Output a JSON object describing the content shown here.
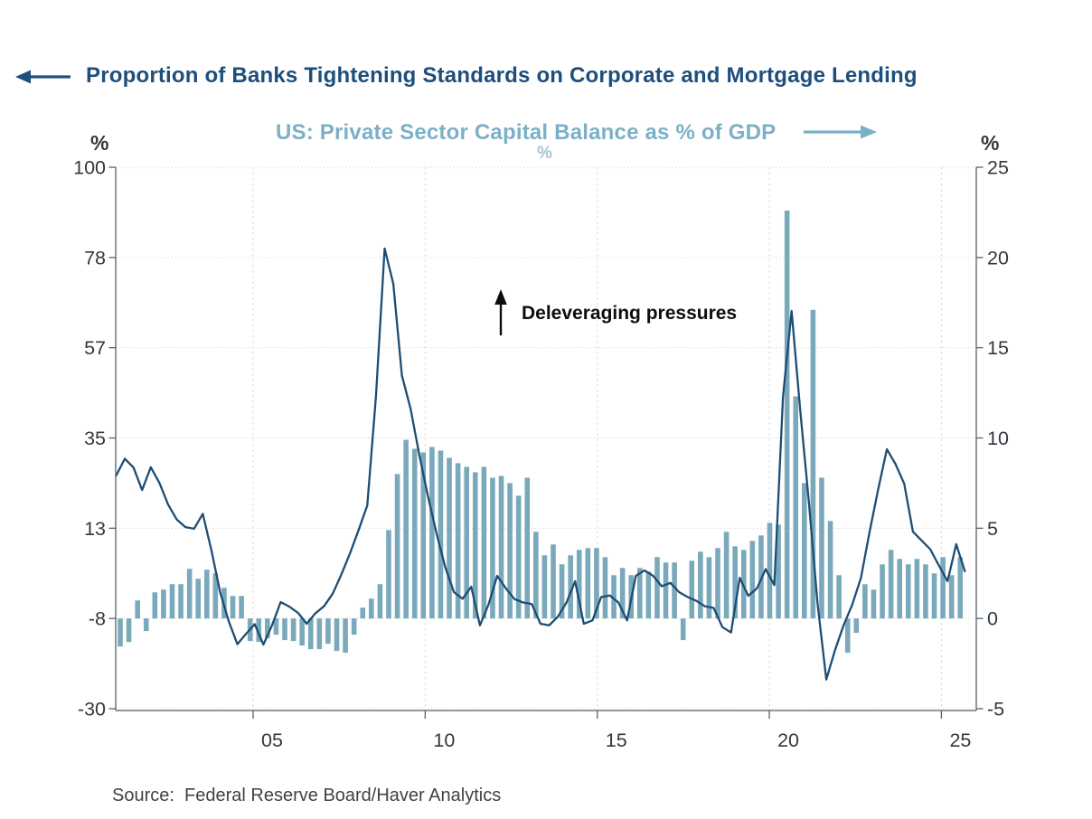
{
  "header": {
    "title": "Proportion of Banks Tightening Standards on Corporate and Mortgage Lending",
    "subtitle": "US: Private Sector Capital Balance as % of GDP",
    "subtitle_unit": "%"
  },
  "axes": {
    "left_unit": "%",
    "right_unit": "%",
    "left_ticks": [
      "100",
      "78",
      "57",
      "35",
      "13",
      "-8",
      "-30"
    ],
    "right_ticks": [
      "25",
      "20",
      "15",
      "10",
      "5",
      "0",
      "-5"
    ],
    "x_ticks": [
      "05",
      "10",
      "15",
      "20",
      "25"
    ]
  },
  "annotation": {
    "text": "Deleveraging pressures",
    "arrow": "up-arrow"
  },
  "source": {
    "text_full": "Source:  Federal Reserve Board/Haver Analytics"
  },
  "colors": {
    "background": "#ffffff",
    "title_navy": "#1d4e7c",
    "line_navy": "#1e4d74",
    "bar_blue": "#7aa9bb",
    "subtitle_blue": "#7cb0c6",
    "unit_pale_blue": "#a3c5d4",
    "text_dark": "#33383d",
    "axis_gray": "#55626c",
    "grid_gray": "#d9d9d9",
    "annotation_black": "#0d0d0d"
  },
  "chart_data": {
    "type": "mixed",
    "frequency": "quarterly",
    "start_period": "2001Q1",
    "grid": true,
    "legend_position": "none",
    "x_axis": {
      "tick_labels": [
        "05",
        "10",
        "15",
        "20",
        "25"
      ],
      "tick_years": [
        2005,
        2010,
        2015,
        2020,
        2025
      ]
    },
    "left_axis": {
      "unit": "%",
      "ticks": [
        100,
        78,
        57,
        35,
        13,
        -8,
        -30
      ],
      "range": [
        -30,
        100
      ]
    },
    "right_axis": {
      "unit": "%",
      "ticks": [
        25,
        20,
        15,
        10,
        5,
        0,
        -5
      ],
      "range": [
        -5,
        25
      ]
    },
    "series": [
      {
        "name": "Proportion of Banks Tightening Standards on Corporate and Mortgage Lending",
        "type": "line",
        "axis": "left",
        "color": "#1e4d74",
        "values": [
          26,
          30,
          27.9,
          22.5,
          28,
          24.2,
          19,
          15.4,
          13.6,
          13.2,
          16.8,
          8,
          -2,
          -9,
          -14.5,
          -12,
          -9.7,
          -14.6,
          -10,
          -4.4,
          -5.5,
          -7,
          -9.6,
          -7.1,
          -5.4,
          -2.4,
          2.2,
          7.3,
          12.9,
          18.8,
          45,
          80.5,
          72,
          50,
          42,
          31,
          21,
          12,
          4,
          -2,
          -3.6,
          -0.7,
          -10,
          -5,
          1.9,
          -1.1,
          -3.7,
          -4.5,
          -4.9,
          -9.6,
          -10,
          -7.9,
          -4.5,
          0.6,
          -9.6,
          -8.8,
          -3.2,
          -2.8,
          -4.5,
          -8.8,
          1.9,
          3.2,
          1.9,
          -0.6,
          0.2,
          -2,
          -3.2,
          -4.1,
          -5.4,
          -5.8,
          -10.4,
          -11.7,
          1.4,
          -2.9,
          -1.1,
          3.5,
          -0.3,
          45,
          65.5,
          41.5,
          19.4,
          -5,
          -23,
          -16,
          -10,
          -5,
          1.4,
          12.5,
          22.7,
          32.3,
          28.7,
          24,
          12.5,
          10.4,
          8.3,
          4.4,
          0.6,
          9.5,
          3
        ]
      },
      {
        "name": "US: Private Sector Capital Balance as % of GDP",
        "type": "bar",
        "axis": "right",
        "color": "#7aa9bb",
        "values": [
          -1.55,
          -1.3,
          1,
          -0.7,
          1.45,
          1.6,
          1.9,
          1.9,
          2.75,
          2.2,
          2.7,
          2.5,
          1.7,
          1.25,
          1.25,
          -1.25,
          -1.3,
          -1.1,
          -0.9,
          -1.2,
          -1.25,
          -1.5,
          -1.7,
          -1.7,
          -1.4,
          -1.8,
          -1.9,
          -0.9,
          0.6,
          1.1,
          1.9,
          4.9,
          8,
          9.9,
          9.4,
          9.2,
          9.5,
          9.3,
          8.9,
          8.6,
          8.4,
          8.1,
          8.4,
          7.8,
          7.9,
          7.5,
          6.8,
          7.8,
          4.8,
          3.5,
          4.1,
          3,
          3.5,
          3.8,
          3.9,
          3.9,
          3.4,
          2.4,
          2.8,
          2.4,
          2.8,
          2.6,
          3.4,
          3.1,
          3.1,
          -1.2,
          3.2,
          3.7,
          3.4,
          3.9,
          4.8,
          4,
          3.8,
          4.3,
          4.6,
          5.3,
          5.2,
          22.6,
          12.3,
          7.5,
          17.1,
          7.8,
          5.4,
          2.4,
          -1.9,
          -0.8,
          1.9,
          1.6,
          3,
          3.8,
          3.3,
          3,
          3.3,
          3,
          2.5,
          3.4,
          2.4,
          3.4
        ]
      }
    ],
    "annotation": {
      "text": "Deleveraging pressures",
      "arrow": "up"
    }
  }
}
